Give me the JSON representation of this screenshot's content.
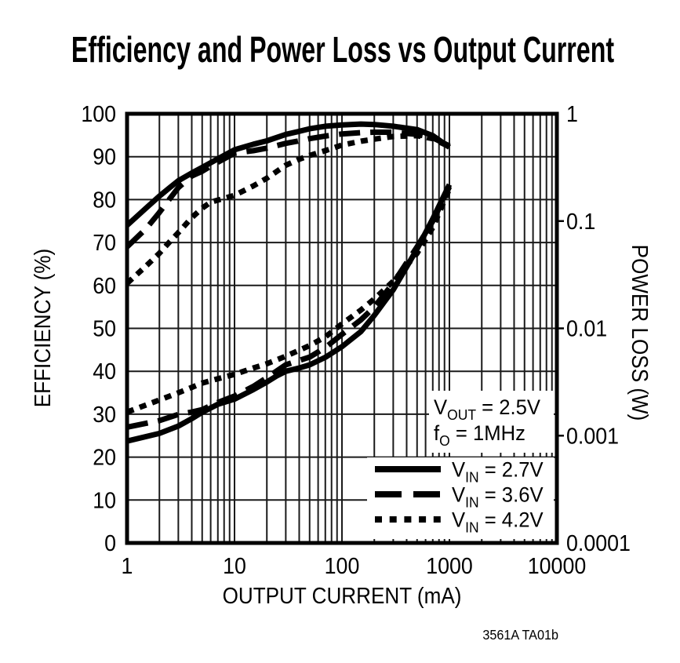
{
  "title": "Efficiency and Power Loss vs Output Current",
  "footnote": "3561A TA01b",
  "colors": {
    "ink": "#000000",
    "grid": "#1a1a1a",
    "background": "#ffffff"
  },
  "chart_data": {
    "type": "line",
    "title": "Efficiency and Power Loss vs Output Current",
    "xlabel": "OUTPUT CURRENT (mA)",
    "ylabel_left": "EFFICIENCY (%)",
    "ylabel_right": "POWER LOSS (W)",
    "x_scale": "log",
    "x_range": [
      1,
      10000
    ],
    "x_ticks": [
      {
        "value": 1,
        "label": "1"
      },
      {
        "value": 10,
        "label": "10"
      },
      {
        "value": 100,
        "label": "100"
      },
      {
        "value": 1000,
        "label": "1000"
      },
      {
        "value": 10000,
        "label": "10000"
      }
    ],
    "y_left_range": [
      0,
      100
    ],
    "y_left_ticks": [
      {
        "value": 100,
        "label": "100"
      },
      {
        "value": 90,
        "label": "90"
      },
      {
        "value": 80,
        "label": "80"
      },
      {
        "value": 70,
        "label": "70"
      },
      {
        "value": 60,
        "label": "60"
      },
      {
        "value": 50,
        "label": "50"
      },
      {
        "value": 40,
        "label": "40"
      },
      {
        "value": 30,
        "label": "30"
      },
      {
        "value": 20,
        "label": "20"
      },
      {
        "value": 10,
        "label": "10"
      },
      {
        "value": 0,
        "label": "0"
      }
    ],
    "y_right_scale": "log",
    "y_right_range": [
      0.0001,
      1
    ],
    "y_right_ticks": [
      {
        "value": 1,
        "label": "1"
      },
      {
        "value": 0.1,
        "label": "0.1"
      },
      {
        "value": 0.01,
        "label": "0.01"
      },
      {
        "value": 0.001,
        "label": "0.001"
      },
      {
        "value": 0.0001,
        "label": "0.0001"
      }
    ],
    "grid": true,
    "legend_position": "bottom-right-inside",
    "annotation": {
      "lines": [
        {
          "main": "V",
          "sub": "OUT",
          "rest": " = 2.5V"
        },
        {
          "main": "f",
          "sub": "O",
          "rest": " = 1MHz"
        }
      ]
    },
    "legend": [
      {
        "style": "solid",
        "main": "V",
        "sub": "IN",
        "rest": " = 2.7V"
      },
      {
        "style": "dashed",
        "main": "V",
        "sub": "IN",
        "rest": " = 3.6V"
      },
      {
        "style": "dotted",
        "main": "V",
        "sub": "IN",
        "rest": " = 4.2V"
      }
    ],
    "series": [
      {
        "id": "efficiency-vin-2.7",
        "axis": "left",
        "style": "solid",
        "points": [
          [
            1,
            74
          ],
          [
            1.5,
            78
          ],
          [
            2,
            80.8
          ],
          [
            2.5,
            82.8
          ],
          [
            3,
            84.4
          ],
          [
            4,
            86.2
          ],
          [
            5,
            87.5
          ],
          [
            6,
            88.6
          ],
          [
            8,
            90.3
          ],
          [
            10,
            91.6
          ],
          [
            15,
            92.9
          ],
          [
            20,
            93.7
          ],
          [
            30,
            95.2
          ],
          [
            40,
            95.9
          ],
          [
            50,
            96.5
          ],
          [
            70,
            97.1
          ],
          [
            100,
            97.4
          ],
          [
            150,
            97.6
          ],
          [
            200,
            97.5
          ],
          [
            300,
            97.1
          ],
          [
            500,
            96.3
          ],
          [
            700,
            94.9
          ],
          [
            1000,
            92.2
          ]
        ]
      },
      {
        "id": "efficiency-vin-3.6",
        "axis": "left",
        "style": "dashed",
        "points": [
          [
            1,
            69
          ],
          [
            1.5,
            73.2
          ],
          [
            2,
            77
          ],
          [
            2.5,
            80.2
          ],
          [
            3,
            82.8
          ],
          [
            4,
            85.5
          ],
          [
            5,
            86.6
          ],
          [
            6,
            87.8
          ],
          [
            8,
            89.5
          ],
          [
            10,
            90.8
          ],
          [
            15,
            91.4
          ],
          [
            20,
            92
          ],
          [
            30,
            93.1
          ],
          [
            40,
            93.7
          ],
          [
            50,
            94.2
          ],
          [
            70,
            94.8
          ],
          [
            100,
            95.3
          ],
          [
            150,
            95.6
          ],
          [
            200,
            95.7
          ],
          [
            300,
            95.7
          ],
          [
            500,
            95.2
          ],
          [
            700,
            94.4
          ],
          [
            1000,
            92.5
          ]
        ]
      },
      {
        "id": "efficiency-vin-4.2",
        "axis": "left",
        "style": "dotted",
        "points": [
          [
            1,
            60.5
          ],
          [
            1.5,
            64.5
          ],
          [
            2,
            67.5
          ],
          [
            2.5,
            70.2
          ],
          [
            3,
            72.3
          ],
          [
            4,
            75.8
          ],
          [
            5,
            78
          ],
          [
            6,
            79.4
          ],
          [
            8,
            80.3
          ],
          [
            10,
            81
          ],
          [
            15,
            83.2
          ],
          [
            20,
            85
          ],
          [
            30,
            88
          ],
          [
            40,
            89.4
          ],
          [
            50,
            90.3
          ],
          [
            70,
            91.4
          ],
          [
            100,
            92.7
          ],
          [
            150,
            93.6
          ],
          [
            200,
            94.1
          ],
          [
            300,
            94.7
          ],
          [
            500,
            94.9
          ],
          [
            700,
            94.2
          ],
          [
            1000,
            92.3
          ]
        ]
      },
      {
        "id": "power-loss-vin-2.7",
        "axis": "right",
        "style": "solid",
        "points": [
          [
            1,
            0.00089
          ],
          [
            2,
            0.00105
          ],
          [
            3,
            0.00123
          ],
          [
            4,
            0.00144
          ],
          [
            5,
            0.00165
          ],
          [
            7,
            0.00196
          ],
          [
            10,
            0.00219
          ],
          [
            15,
            0.00269
          ],
          [
            20,
            0.00316
          ],
          [
            25,
            0.00363
          ],
          [
            30,
            0.00398
          ],
          [
            40,
            0.00427
          ],
          [
            50,
            0.00457
          ],
          [
            70,
            0.00537
          ],
          [
            100,
            0.00676
          ],
          [
            150,
            0.00933
          ],
          [
            200,
            0.0132
          ],
          [
            300,
            0.0229
          ],
          [
            500,
            0.055
          ],
          [
            700,
            0.105
          ],
          [
            1000,
            0.219
          ]
        ]
      },
      {
        "id": "power-loss-vin-3.6",
        "axis": "right",
        "style": "dashed",
        "points": [
          [
            1,
            0.0012
          ],
          [
            2,
            0.00138
          ],
          [
            3,
            0.00158
          ],
          [
            4,
            0.00166
          ],
          [
            5,
            0.00175
          ],
          [
            7,
            0.00204
          ],
          [
            10,
            0.00234
          ],
          [
            15,
            0.00288
          ],
          [
            20,
            0.00347
          ],
          [
            30,
            0.00458
          ],
          [
            50,
            0.0054
          ],
          [
            70,
            0.00662
          ],
          [
            100,
            0.0088
          ],
          [
            150,
            0.012
          ],
          [
            200,
            0.0158
          ],
          [
            300,
            0.0264
          ],
          [
            500,
            0.0575
          ],
          [
            700,
            0.1
          ],
          [
            1000,
            0.209
          ]
        ]
      },
      {
        "id": "power-loss-vin-4.2",
        "axis": "right",
        "style": "dotted",
        "points": [
          [
            1,
            0.00166
          ],
          [
            2,
            0.00215
          ],
          [
            3,
            0.00251
          ],
          [
            4,
            0.00282
          ],
          [
            5,
            0.00309
          ],
          [
            7,
            0.00339
          ],
          [
            10,
            0.00372
          ],
          [
            15,
            0.00427
          ],
          [
            20,
            0.00468
          ],
          [
            30,
            0.0055
          ],
          [
            50,
            0.00692
          ],
          [
            70,
            0.00832
          ],
          [
            100,
            0.011
          ],
          [
            150,
            0.0148
          ],
          [
            200,
            0.0188
          ],
          [
            300,
            0.0275
          ],
          [
            500,
            0.0501
          ],
          [
            700,
            0.0871
          ],
          [
            1000,
            0.2
          ]
        ]
      }
    ]
  }
}
